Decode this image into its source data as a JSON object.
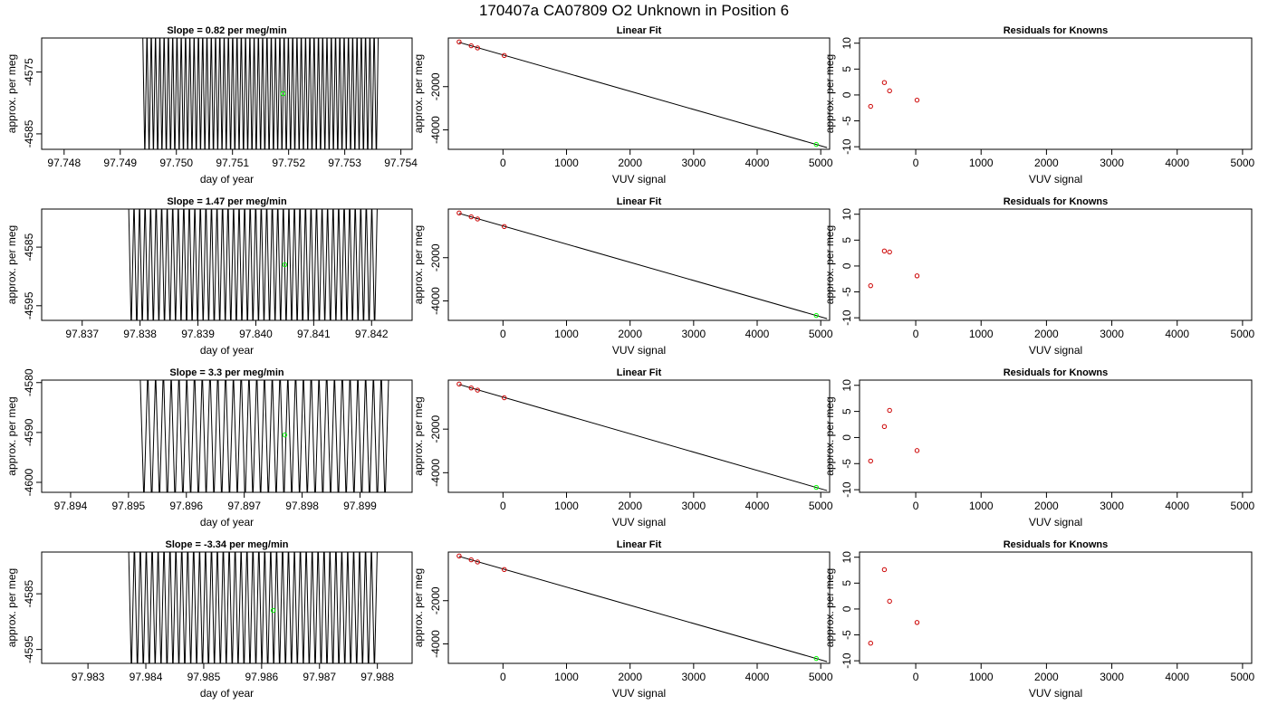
{
  "main_title": "170407a     CA07809   O2 Unknown in Position  6",
  "colors": {
    "axis": "#000000",
    "trace": "#000000",
    "highlight": "#00ff00",
    "known": "#cc0000"
  },
  "chart_data": [
    {
      "type": "line",
      "row": 0,
      "title": "Slope =  0.82  per meg/min",
      "xlabel": "day of year",
      "ylabel": "approx. per meg",
      "xlim": [
        97.7476,
        97.7542
      ],
      "ylim": [
        -4587.5,
        -4569.5
      ],
      "xticks": [
        97.748,
        97.749,
        97.75,
        97.751,
        97.752,
        97.753,
        97.754
      ],
      "xtick_labels": [
        "97.748",
        "97.749",
        "97.750",
        "97.751",
        "97.752",
        "97.753",
        "97.754"
      ],
      "yticks": [
        -4575,
        -4585
      ],
      "ytick_labels": [
        "-4575",
        "-4585"
      ],
      "trace": {
        "x_start": 97.7494,
        "x_end": 97.7536,
        "cycles": 55,
        "y_low": -4587.5,
        "y_high": -4569.5
      },
      "marker": {
        "x": 97.7519,
        "y": -4578.5
      }
    },
    {
      "type": "line",
      "row": 1,
      "title": "Slope =  1.47  per meg/min",
      "xlabel": "day of year",
      "ylabel": "approx. per meg",
      "xlim": [
        97.8363,
        97.8427
      ],
      "ylim": [
        -4597.5,
        -4578.5
      ],
      "xticks": [
        97.837,
        97.838,
        97.839,
        97.84,
        97.841,
        97.842
      ],
      "xtick_labels": [
        "97.837",
        "97.838",
        "97.839",
        "97.840",
        "97.841",
        "97.842"
      ],
      "yticks": [
        -4585,
        -4595
      ],
      "ytick_labels": [
        "-4585",
        "-4595"
      ],
      "trace": {
        "x_start": 97.8378,
        "x_end": 97.8421,
        "cycles": 45,
        "y_low": -4597.5,
        "y_high": -4578.5
      },
      "marker": {
        "x": 97.8405,
        "y": -4588
      }
    },
    {
      "type": "line",
      "row": 2,
      "title": "Slope =  3.3  per meg/min",
      "xlabel": "day of year",
      "ylabel": "approx. per meg",
      "xlim": [
        97.8935,
        97.8999
      ],
      "ylim": [
        -4602,
        -4579.5
      ],
      "xticks": [
        97.894,
        97.895,
        97.896,
        97.897,
        97.898,
        97.899
      ],
      "xtick_labels": [
        "97.894",
        "97.895",
        "97.896",
        "97.897",
        "97.898",
        "97.899"
      ],
      "yticks": [
        -4580,
        -4590,
        -4600
      ],
      "ytick_labels": [
        "-4580",
        "-4590",
        "-4600"
      ],
      "trace": {
        "x_start": 97.8952,
        "x_end": 97.8995,
        "cycles": 32,
        "y_low": -4602,
        "y_high": -4579.5
      },
      "marker": {
        "x": 97.8977,
        "y": -4590.5
      }
    },
    {
      "type": "line",
      "row": 3,
      "title": "Slope =  -3.34  per meg/min",
      "xlabel": "day of year",
      "ylabel": "approx. per meg",
      "xlim": [
        97.9822,
        97.9886
      ],
      "ylim": [
        -4597.5,
        -4577.5
      ],
      "xticks": [
        97.983,
        97.984,
        97.985,
        97.986,
        97.987,
        97.988
      ],
      "xtick_labels": [
        "97.983",
        "97.984",
        "97.985",
        "97.986",
        "97.987",
        "97.988"
      ],
      "yticks": [
        -4585,
        -4595
      ],
      "ytick_labels": [
        "-4585",
        "-4595"
      ],
      "trace": {
        "x_start": 97.9837,
        "x_end": 97.988,
        "cycles": 42,
        "y_low": -4597.5,
        "y_high": -4577.5
      },
      "marker": {
        "x": 97.9862,
        "y": -4588
      }
    },
    {
      "type": "scatter",
      "row": 0,
      "title": "Linear Fit",
      "xlabel": "VUV signal",
      "ylabel": "approx. per meg",
      "xlim": [
        -860,
        5140
      ],
      "ylim": [
        -4900,
        250
      ],
      "xticks": [
        0,
        1000,
        2000,
        3000,
        4000,
        5000
      ],
      "xtick_labels": [
        "0",
        "1000",
        "2000",
        "3000",
        "4000",
        "5000"
      ],
      "yticks": [
        -2000,
        -4000
      ],
      "ytick_labels": [
        "-2000",
        "-4000"
      ],
      "fit_line": {
        "x": [
          -690,
          5100
        ],
        "y": [
          50,
          -4820
        ]
      },
      "knowns": {
        "x": [
          -690,
          -500,
          -400,
          20
        ],
        "y": [
          70,
          -110,
          -210,
          -560
        ]
      },
      "unknown": {
        "x": 4930,
        "y": -4675
      }
    },
    {
      "type": "scatter",
      "row": 1,
      "title": "Linear Fit",
      "xlabel": "VUV signal",
      "ylabel": "approx. per meg",
      "xlim": [
        -860,
        5140
      ],
      "ylim": [
        -4900,
        250
      ],
      "xticks": [
        0,
        1000,
        2000,
        3000,
        4000,
        5000
      ],
      "xtick_labels": [
        "0",
        "1000",
        "2000",
        "3000",
        "4000",
        "5000"
      ],
      "yticks": [
        -2000,
        -4000
      ],
      "ytick_labels": [
        "-2000",
        "-4000"
      ],
      "fit_line": {
        "x": [
          -690,
          5100
        ],
        "y": [
          50,
          -4820
        ]
      },
      "knowns": {
        "x": [
          -690,
          -500,
          -400,
          20
        ],
        "y": [
          70,
          -110,
          -210,
          -560
        ]
      },
      "unknown": {
        "x": 4930,
        "y": -4675
      }
    },
    {
      "type": "scatter",
      "row": 2,
      "title": "Linear Fit",
      "xlabel": "VUV signal",
      "ylabel": "approx. per meg",
      "xlim": [
        -860,
        5140
      ],
      "ylim": [
        -4900,
        250
      ],
      "xticks": [
        0,
        1000,
        2000,
        3000,
        4000,
        5000
      ],
      "xtick_labels": [
        "0",
        "1000",
        "2000",
        "3000",
        "4000",
        "5000"
      ],
      "yticks": [
        -2000,
        -4000
      ],
      "ytick_labels": [
        "-2000",
        "-4000"
      ],
      "fit_line": {
        "x": [
          -690,
          5100
        ],
        "y": [
          50,
          -4820
        ]
      },
      "knowns": {
        "x": [
          -690,
          -500,
          -400,
          20
        ],
        "y": [
          70,
          -110,
          -210,
          -560
        ]
      },
      "unknown": {
        "x": 4930,
        "y": -4675
      }
    },
    {
      "type": "scatter",
      "row": 3,
      "title": "Linear Fit",
      "xlabel": "VUV signal",
      "ylabel": "approx. per meg",
      "xlim": [
        -860,
        5140
      ],
      "ylim": [
        -4900,
        250
      ],
      "xticks": [
        0,
        1000,
        2000,
        3000,
        4000,
        5000
      ],
      "xtick_labels": [
        "0",
        "1000",
        "2000",
        "3000",
        "4000",
        "5000"
      ],
      "yticks": [
        -2000,
        -4000
      ],
      "ytick_labels": [
        "-2000",
        "-4000"
      ],
      "fit_line": {
        "x": [
          -690,
          5100
        ],
        "y": [
          50,
          -4820
        ]
      },
      "knowns": {
        "x": [
          -690,
          -500,
          -400,
          20
        ],
        "y": [
          70,
          -110,
          -210,
          -560
        ]
      },
      "unknown": {
        "x": 4930,
        "y": -4675
      }
    },
    {
      "type": "scatter",
      "row": 0,
      "title": "Residuals for Knowns",
      "xlabel": "VUV signal",
      "ylabel": "approx. per meg",
      "xlim": [
        -860,
        5140
      ],
      "ylim": [
        -10.5,
        11
      ],
      "xticks": [
        0,
        1000,
        2000,
        3000,
        4000,
        5000
      ],
      "xtick_labels": [
        "0",
        "1000",
        "2000",
        "3000",
        "4000",
        "5000"
      ],
      "yticks": [
        -10,
        -5,
        0,
        5,
        10
      ],
      "ytick_labels": [
        "-10",
        "-5",
        "0",
        "5",
        "10"
      ],
      "points": {
        "x": [
          -690,
          -480,
          -400,
          20
        ],
        "y": [
          -2.2,
          2.4,
          0.8,
          -1.0
        ]
      }
    },
    {
      "type": "scatter",
      "row": 1,
      "title": "Residuals for Knowns",
      "xlabel": "VUV signal",
      "ylabel": "approx. per meg",
      "xlim": [
        -860,
        5140
      ],
      "ylim": [
        -10.5,
        11
      ],
      "xticks": [
        0,
        1000,
        2000,
        3000,
        4000,
        5000
      ],
      "xtick_labels": [
        "0",
        "1000",
        "2000",
        "3000",
        "4000",
        "5000"
      ],
      "yticks": [
        -10,
        -5,
        0,
        5,
        10
      ],
      "ytick_labels": [
        "-10",
        "-5",
        "0",
        "5",
        "10"
      ],
      "points": {
        "x": [
          -690,
          -480,
          -400,
          20
        ],
        "y": [
          -3.8,
          2.9,
          2.7,
          -1.9
        ]
      }
    },
    {
      "type": "scatter",
      "row": 2,
      "title": "Residuals for Knowns",
      "xlabel": "VUV signal",
      "ylabel": "approx. per meg",
      "xlim": [
        -860,
        5140
      ],
      "ylim": [
        -10.5,
        11
      ],
      "xticks": [
        0,
        1000,
        2000,
        3000,
        4000,
        5000
      ],
      "xtick_labels": [
        "0",
        "1000",
        "2000",
        "3000",
        "4000",
        "5000"
      ],
      "yticks": [
        -10,
        -5,
        0,
        5,
        10
      ],
      "ytick_labels": [
        "-10",
        "-5",
        "0",
        "5",
        "10"
      ],
      "points": {
        "x": [
          -690,
          -480,
          -400,
          20
        ],
        "y": [
          -4.5,
          2.1,
          5.2,
          -2.5
        ]
      }
    },
    {
      "type": "scatter",
      "row": 3,
      "title": "Residuals for Knowns",
      "xlabel": "VUV signal",
      "ylabel": "approx. per meg",
      "xlim": [
        -860,
        5140
      ],
      "ylim": [
        -10.5,
        11
      ],
      "xticks": [
        0,
        1000,
        2000,
        3000,
        4000,
        5000
      ],
      "xtick_labels": [
        "0",
        "1000",
        "2000",
        "3000",
        "4000",
        "5000"
      ],
      "yticks": [
        -10,
        -5,
        0,
        5,
        10
      ],
      "ytick_labels": [
        "-10",
        "-5",
        "0",
        "5",
        "10"
      ],
      "points": {
        "x": [
          -690,
          -480,
          -400,
          20
        ],
        "y": [
          -6.6,
          7.6,
          1.5,
          -2.6
        ]
      }
    }
  ]
}
